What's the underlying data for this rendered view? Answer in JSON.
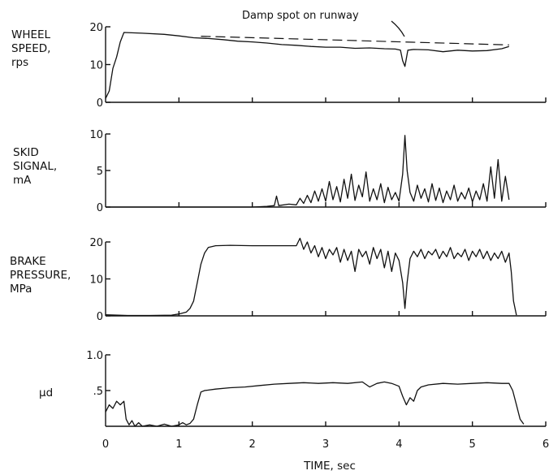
{
  "chart_data": [
    {
      "type": "line",
      "ylabel_lines": [
        "WHEEL",
        "SPEED,",
        "rps"
      ],
      "yticks": [
        0,
        10,
        20
      ],
      "yticklabels": [
        "0",
        "10",
        "20"
      ],
      "ylim": [
        0,
        20
      ],
      "xlim": [
        0,
        6
      ],
      "annotation": "Damp spot on runway",
      "dashed_reference": {
        "x": [
          1.3,
          5.5
        ],
        "y": [
          17.5,
          15.2
        ]
      },
      "series": [
        {
          "x": [
            0,
            0.05,
            0.1,
            0.15,
            0.2,
            0.25,
            0.5,
            0.8,
            1.0,
            1.2,
            1.4,
            1.6,
            1.8,
            2.0,
            2.2,
            2.4,
            2.6,
            2.8,
            3.0,
            3.2,
            3.4,
            3.6,
            3.8,
            3.95,
            4.02,
            4.05,
            4.08,
            4.12,
            4.2,
            4.4,
            4.6,
            4.8,
            5.0,
            5.2,
            5.4,
            5.5
          ],
          "y": [
            1,
            3,
            9,
            12,
            16,
            18.5,
            18.3,
            18,
            17.6,
            17.1,
            16.9,
            16.6,
            16.2,
            16,
            15.7,
            15.3,
            15.1,
            14.8,
            14.6,
            14.6,
            14.3,
            14.4,
            14.2,
            14.1,
            13.8,
            11,
            9.5,
            13.8,
            14,
            13.9,
            13.4,
            13.8,
            13.6,
            13.7,
            14.2,
            14.8
          ]
        }
      ]
    },
    {
      "type": "line",
      "ylabel_lines": [
        "SKID",
        "SIGNAL,",
        "mA"
      ],
      "yticks": [
        0,
        5,
        10
      ],
      "yticklabels": [
        "0",
        "5",
        "10"
      ],
      "ylim": [
        0,
        10
      ],
      "xlim": [
        0,
        6
      ],
      "series": [
        {
          "x": [
            0,
            1.0,
            2.0,
            2.2,
            2.3,
            2.33,
            2.36,
            2.5,
            2.6,
            2.65,
            2.7,
            2.75,
            2.8,
            2.85,
            2.9,
            2.95,
            3.0,
            3.05,
            3.1,
            3.15,
            3.2,
            3.25,
            3.3,
            3.35,
            3.4,
            3.45,
            3.5,
            3.55,
            3.6,
            3.65,
            3.7,
            3.75,
            3.8,
            3.85,
            3.9,
            3.95,
            4.0,
            4.05,
            4.08,
            4.11,
            4.15,
            4.2,
            4.25,
            4.3,
            4.35,
            4.4,
            4.45,
            4.5,
            4.55,
            4.6,
            4.65,
            4.7,
            4.75,
            4.8,
            4.85,
            4.9,
            4.95,
            5.0,
            5.05,
            5.1,
            5.15,
            5.2,
            5.25,
            5.3,
            5.35,
            5.4,
            5.45,
            5.5
          ],
          "y": [
            0,
            0,
            0,
            0.1,
            0.2,
            1.5,
            0.2,
            0.4,
            0.3,
            1.2,
            0.5,
            1.6,
            0.6,
            2.2,
            0.8,
            2.5,
            0.8,
            3.5,
            1.0,
            2.8,
            0.7,
            3.8,
            1.2,
            4.5,
            0.9,
            3.0,
            1.4,
            4.8,
            0.8,
            2.5,
            1.0,
            3.2,
            0.6,
            2.7,
            1.0,
            2.0,
            0.8,
            4.5,
            9.8,
            5.0,
            2.0,
            0.8,
            3.0,
            1.2,
            2.5,
            0.7,
            3.2,
            0.9,
            2.6,
            0.6,
            2.2,
            1.0,
            3.0,
            0.8,
            2.0,
            1.1,
            2.6,
            0.7,
            2.2,
            1.0,
            3.2,
            0.8,
            5.5,
            1.2,
            6.5,
            0.8,
            4.2,
            1.0
          ]
        }
      ]
    },
    {
      "type": "line",
      "ylabel_lines": [
        "BRAKE",
        "PRESSURE,",
        "MPa"
      ],
      "yticks": [
        0,
        10,
        20
      ],
      "yticklabels": [
        "0",
        "10",
        "20"
      ],
      "ylim": [
        0,
        20
      ],
      "xlim": [
        0,
        6
      ],
      "series": [
        {
          "x": [
            0,
            0.3,
            0.6,
            0.9,
            1.0,
            1.1,
            1.15,
            1.2,
            1.25,
            1.3,
            1.35,
            1.4,
            1.5,
            1.7,
            2.0,
            2.3,
            2.6,
            2.65,
            2.7,
            2.75,
            2.8,
            2.85,
            2.9,
            2.95,
            3.0,
            3.05,
            3.1,
            3.15,
            3.2,
            3.25,
            3.3,
            3.35,
            3.4,
            3.45,
            3.5,
            3.55,
            3.6,
            3.65,
            3.7,
            3.75,
            3.8,
            3.85,
            3.9,
            3.95,
            4.0,
            4.05,
            4.08,
            4.11,
            4.15,
            4.2,
            4.25,
            4.3,
            4.35,
            4.4,
            4.45,
            4.5,
            4.55,
            4.6,
            4.65,
            4.7,
            4.75,
            4.8,
            4.85,
            4.9,
            4.95,
            5.0,
            5.05,
            5.1,
            5.15,
            5.2,
            5.25,
            5.3,
            5.35,
            5.4,
            5.45,
            5.5,
            5.53,
            5.56,
            5.6
          ],
          "y": [
            0.3,
            0.1,
            0.1,
            0.2,
            0.5,
            1.0,
            2.0,
            4.0,
            9.0,
            14.0,
            17.0,
            18.5,
            19.0,
            19.1,
            19.0,
            19.0,
            19.0,
            21.0,
            18.0,
            20.0,
            17.0,
            19.0,
            16.0,
            18.5,
            15.5,
            18.0,
            16.5,
            18.5,
            14.5,
            18.0,
            15.0,
            17.5,
            12.0,
            18.0,
            16.0,
            17.5,
            14.0,
            18.5,
            15.5,
            18.0,
            13.0,
            17.5,
            12.0,
            17.0,
            15.0,
            9.0,
            2.0,
            9.0,
            15.5,
            17.5,
            16.0,
            18.0,
            15.5,
            17.5,
            16.5,
            18.0,
            15.5,
            17.5,
            16.0,
            18.5,
            15.5,
            17.0,
            16.0,
            18.0,
            15.0,
            17.5,
            16.0,
            18.0,
            15.5,
            17.5,
            15.0,
            17.0,
            15.5,
            17.5,
            14.5,
            17.0,
            12.0,
            4.0,
            0.2
          ]
        }
      ]
    },
    {
      "type": "line",
      "ylabel_lines": [
        "μd"
      ],
      "yticks": [
        0.5,
        1.0
      ],
      "yticklabels": [
        ".5",
        "1.0"
      ],
      "ylim": [
        0,
        1.0
      ],
      "xlim": [
        0,
        6
      ],
      "xlabel": "TIME, sec",
      "xticks": [
        0,
        1,
        2,
        3,
        4,
        5,
        6
      ],
      "xticklabels": [
        "0",
        "1",
        "2",
        "3",
        "4",
        "5",
        "6"
      ],
      "series": [
        {
          "x": [
            0,
            0.05,
            0.1,
            0.15,
            0.2,
            0.25,
            0.28,
            0.32,
            0.36,
            0.4,
            0.45,
            0.5,
            0.6,
            0.7,
            0.8,
            0.9,
            1.0,
            1.05,
            1.1,
            1.15,
            1.2,
            1.25,
            1.3,
            1.35,
            1.5,
            1.7,
            1.9,
            2.1,
            2.3,
            2.5,
            2.7,
            2.9,
            3.1,
            3.3,
            3.5,
            3.6,
            3.7,
            3.8,
            3.9,
            4.0,
            4.05,
            4.1,
            4.15,
            4.2,
            4.25,
            4.3,
            4.4,
            4.6,
            4.8,
            5.0,
            5.2,
            5.4,
            5.5,
            5.55,
            5.6,
            5.65,
            5.7
          ],
          "y": [
            0.2,
            0.3,
            0.25,
            0.35,
            0.3,
            0.35,
            0.1,
            0.02,
            0.08,
            0.0,
            0.05,
            0.0,
            0.02,
            0.0,
            0.03,
            0.0,
            0.02,
            0.05,
            0.02,
            0.04,
            0.1,
            0.3,
            0.48,
            0.5,
            0.52,
            0.54,
            0.55,
            0.57,
            0.59,
            0.6,
            0.61,
            0.6,
            0.61,
            0.6,
            0.62,
            0.55,
            0.6,
            0.62,
            0.6,
            0.56,
            0.42,
            0.3,
            0.4,
            0.35,
            0.5,
            0.55,
            0.58,
            0.6,
            0.59,
            0.6,
            0.61,
            0.6,
            0.6,
            0.5,
            0.3,
            0.1,
            0.03
          ]
        }
      ]
    }
  ]
}
